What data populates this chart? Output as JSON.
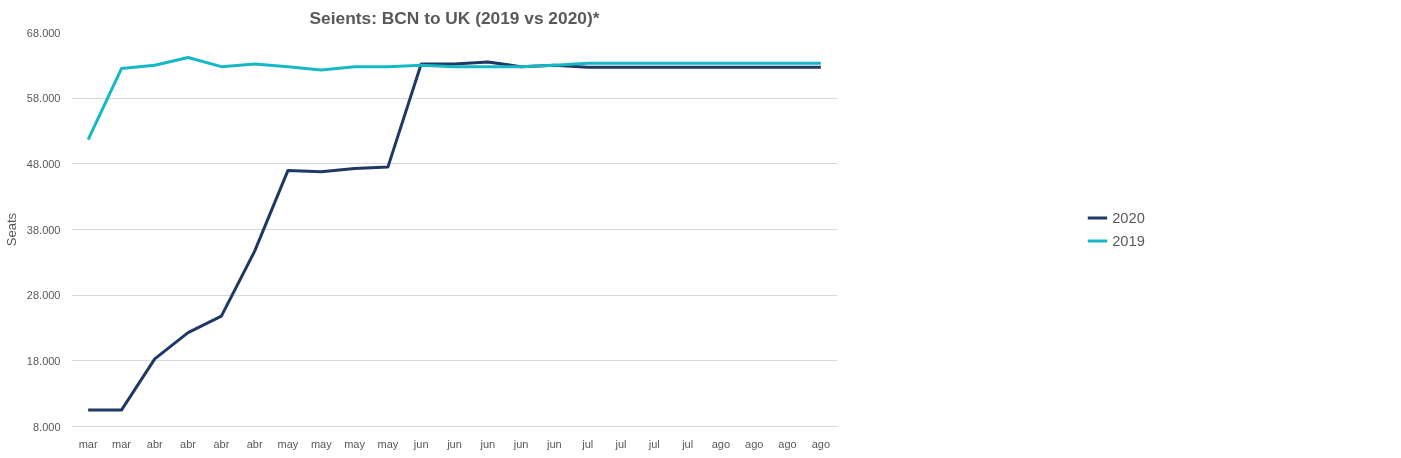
{
  "chart_data": {
    "type": "line",
    "title": "Seients: BCN to UK (2019 vs 2020)*",
    "ylabel": "Seats",
    "categories": [
      "mar",
      "mar",
      "abr",
      "abr",
      "abr",
      "abr",
      "may",
      "may",
      "may",
      "may",
      "jun",
      "jun",
      "jun",
      "jun",
      "jun",
      "jul",
      "jul",
      "jul",
      "jul",
      "ago",
      "ago",
      "ago",
      "ago"
    ],
    "series": [
      {
        "name": "2020",
        "color": "#1f3864",
        "values": [
          10.5,
          10.5,
          18.3,
          22.3,
          24.8,
          34.7,
          47.0,
          46.8,
          47.3,
          47.5,
          63.2,
          63.2,
          63.5,
          62.8,
          63.0,
          62.7,
          62.7,
          62.7,
          62.7,
          62.7,
          62.7,
          62.7,
          62.7
        ]
      },
      {
        "name": "2019",
        "color": "#17b8c6",
        "values": [
          51.7,
          62.5,
          63.0,
          64.2,
          62.8,
          63.2,
          62.8,
          62.3,
          62.8,
          62.8,
          63.0,
          62.8,
          62.8,
          62.8,
          63.0,
          63.3,
          63.3,
          63.3,
          63.3,
          63.3,
          63.3,
          63.3,
          63.3
        ]
      }
    ],
    "ylim": [
      8,
      68
    ],
    "yticks": [
      {
        "value": 8,
        "label": "8.000"
      },
      {
        "value": 18,
        "label": "18.000"
      },
      {
        "value": 28,
        "label": "28.000"
      },
      {
        "value": 38,
        "label": "38.000"
      },
      {
        "value": 48,
        "label": "48.000"
      },
      {
        "value": 58,
        "label": "58.000"
      },
      {
        "value": 68,
        "label": "68.000"
      }
    ],
    "grid": "y",
    "legend": "right",
    "line_style": "solid",
    "marker": "none"
  }
}
